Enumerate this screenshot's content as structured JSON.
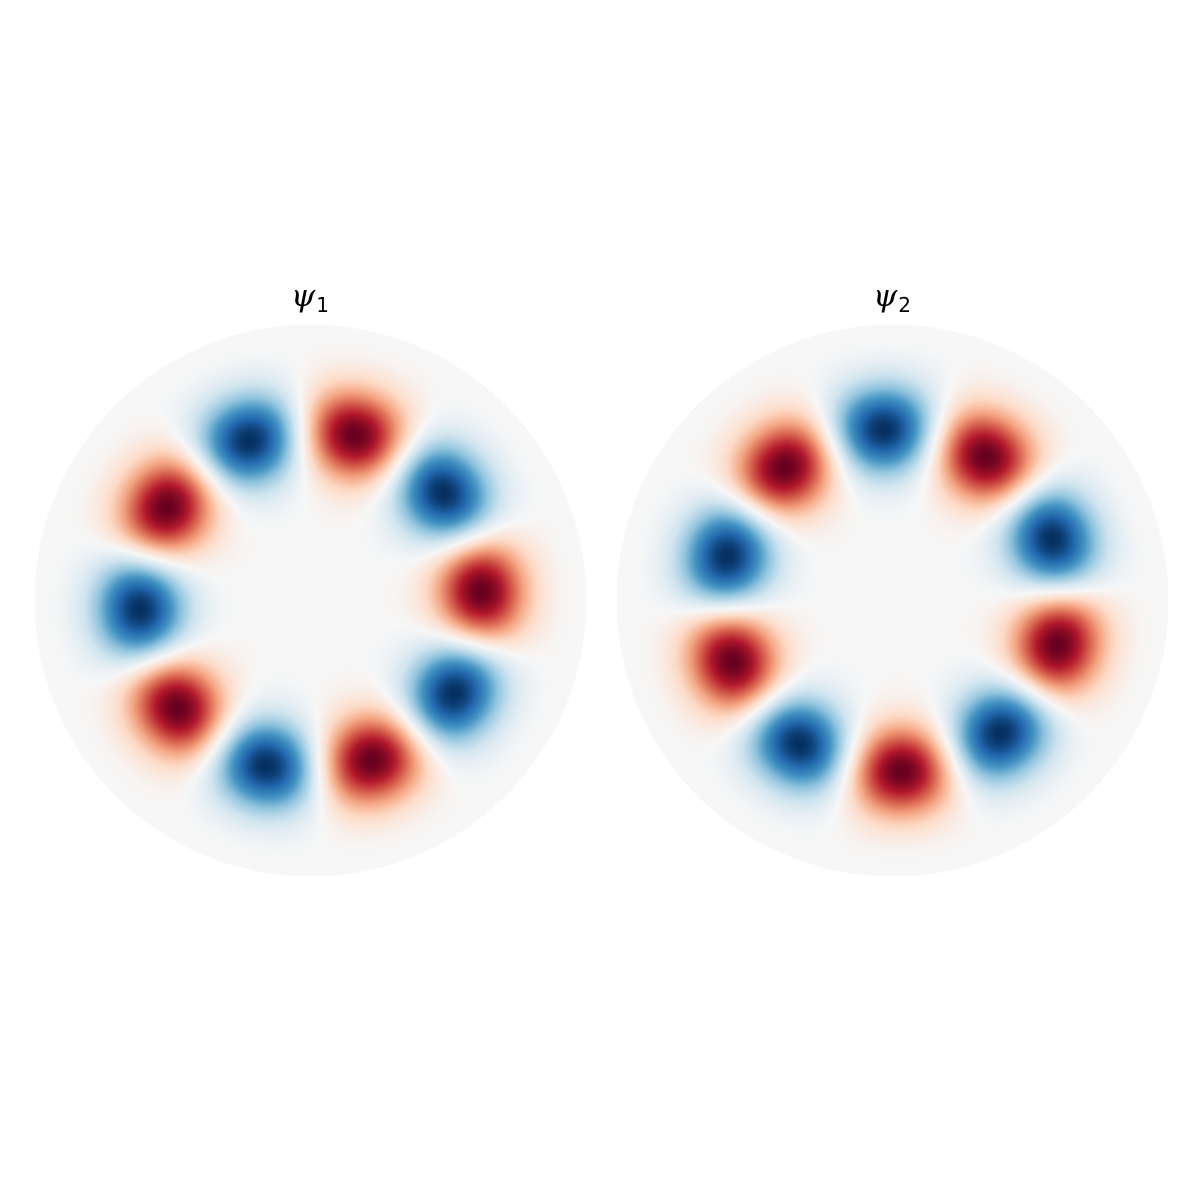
{
  "figure": {
    "panels": [
      {
        "symbol": "ψ",
        "subscript": "1",
        "angular_mode": 5,
        "phase_deg": 3,
        "radial_peak": 0.62,
        "radial_width": 0.16,
        "colormap": [
          "#053061",
          "#2166ac",
          "#4393c3",
          "#92c5de",
          "#d1e5f0",
          "#f7f7f7",
          "#fddbc7",
          "#f4a582",
          "#d6604d",
          "#b2182b",
          "#67001f"
        ]
      },
      {
        "symbol": "ψ",
        "subscript": "2",
        "angular_mode": 5,
        "phase_deg": -15,
        "radial_peak": 0.62,
        "radial_width": 0.16,
        "colormap": [
          "#053061",
          "#2166ac",
          "#4393c3",
          "#92c5de",
          "#d1e5f0",
          "#f7f7f7",
          "#fddbc7",
          "#f4a582",
          "#d6604d",
          "#b2182b",
          "#67001f"
        ]
      }
    ]
  }
}
